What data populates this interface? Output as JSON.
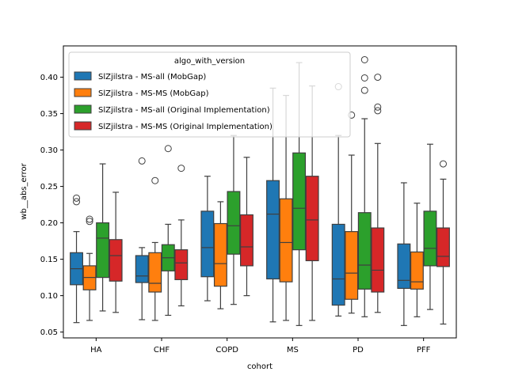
{
  "chart_data": {
    "type": "box",
    "xlabel": "cohort",
    "ylabel": "wb__abs_error",
    "categories": [
      "HA",
      "CHF",
      "COPD",
      "MS",
      "PD",
      "PFF"
    ],
    "ylim": [
      0.042,
      0.443
    ],
    "yticks": [
      0.05,
      0.1,
      0.15,
      0.2,
      0.25,
      0.3,
      0.35,
      0.4
    ],
    "ytick_labels": [
      "0.05",
      "0.10",
      "0.15",
      "0.20",
      "0.25",
      "0.30",
      "0.35",
      "0.40"
    ],
    "legend": {
      "title": "algo_with_version",
      "position": "upper-left"
    },
    "grid": false,
    "series": [
      {
        "name": "SlZjilstra - MS-all (MobGap)",
        "color": "#1f77b4",
        "boxes": [
          {
            "min": 0.063,
            "q1": 0.115,
            "median": 0.137,
            "q3": 0.159,
            "max": 0.188,
            "outliers": [
              0.229,
              0.234
            ]
          },
          {
            "min": 0.067,
            "q1": 0.118,
            "median": 0.127,
            "q3": 0.155,
            "max": 0.166,
            "outliers": [
              0.285
            ]
          },
          {
            "min": 0.093,
            "q1": 0.126,
            "median": 0.166,
            "q3": 0.216,
            "max": 0.264,
            "outliers": []
          },
          {
            "min": 0.064,
            "q1": 0.123,
            "median": 0.212,
            "q3": 0.258,
            "max": 0.385,
            "outliers": []
          },
          {
            "min": 0.072,
            "q1": 0.087,
            "median": 0.123,
            "q3": 0.198,
            "max": 0.32,
            "outliers": [
              0.387
            ]
          },
          {
            "min": 0.059,
            "q1": 0.11,
            "median": 0.121,
            "q3": 0.171,
            "max": 0.255,
            "outliers": []
          }
        ]
      },
      {
        "name": "SlZjilstra - MS-MS (MobGap)",
        "color": "#ff7f0e",
        "boxes": [
          {
            "min": 0.066,
            "q1": 0.108,
            "median": 0.125,
            "q3": 0.141,
            "max": 0.158,
            "outliers": [
              0.202,
              0.205
            ]
          },
          {
            "min": 0.066,
            "q1": 0.105,
            "median": 0.117,
            "q3": 0.159,
            "max": 0.173,
            "outliers": [
              0.258
            ]
          },
          {
            "min": 0.082,
            "q1": 0.113,
            "median": 0.144,
            "q3": 0.199,
            "max": 0.229,
            "outliers": []
          },
          {
            "min": 0.066,
            "q1": 0.119,
            "median": 0.173,
            "q3": 0.233,
            "max": 0.375,
            "outliers": []
          },
          {
            "min": 0.076,
            "q1": 0.095,
            "median": 0.131,
            "q3": 0.188,
            "max": 0.293,
            "outliers": [
              0.348
            ]
          },
          {
            "min": 0.071,
            "q1": 0.109,
            "median": 0.119,
            "q3": 0.16,
            "max": 0.227,
            "outliers": []
          }
        ]
      },
      {
        "name": "SlZjilstra - MS-all (Original Implementation)",
        "color": "#2ca02c",
        "boxes": [
          {
            "min": 0.079,
            "q1": 0.125,
            "median": 0.179,
            "q3": 0.2,
            "max": 0.281,
            "outliers": []
          },
          {
            "min": 0.073,
            "q1": 0.134,
            "median": 0.152,
            "q3": 0.17,
            "max": 0.198,
            "outliers": [
              0.302
            ]
          },
          {
            "min": 0.088,
            "q1": 0.157,
            "median": 0.196,
            "q3": 0.243,
            "max": 0.32,
            "outliers": []
          },
          {
            "min": 0.059,
            "q1": 0.163,
            "median": 0.22,
            "q3": 0.296,
            "max": 0.42,
            "outliers": []
          },
          {
            "min": 0.071,
            "q1": 0.109,
            "median": 0.142,
            "q3": 0.214,
            "max": 0.343,
            "outliers": [
              0.382,
              0.399,
              0.424
            ]
          },
          {
            "min": 0.081,
            "q1": 0.141,
            "median": 0.165,
            "q3": 0.216,
            "max": 0.308,
            "outliers": []
          }
        ]
      },
      {
        "name": "SlZjilstra - MS-MS (Original Implementation)",
        "color": "#d62728",
        "boxes": [
          {
            "min": 0.077,
            "q1": 0.12,
            "median": 0.155,
            "q3": 0.177,
            "max": 0.242,
            "outliers": []
          },
          {
            "min": 0.086,
            "q1": 0.122,
            "median": 0.145,
            "q3": 0.163,
            "max": 0.204,
            "outliers": [
              0.275
            ]
          },
          {
            "min": 0.1,
            "q1": 0.141,
            "median": 0.167,
            "q3": 0.211,
            "max": 0.29,
            "outliers": []
          },
          {
            "min": 0.066,
            "q1": 0.148,
            "median": 0.204,
            "q3": 0.264,
            "max": 0.388,
            "outliers": []
          },
          {
            "min": 0.077,
            "q1": 0.105,
            "median": 0.135,
            "q3": 0.193,
            "max": 0.309,
            "outliers": [
              0.354,
              0.359,
              0.4
            ]
          },
          {
            "min": 0.061,
            "q1": 0.14,
            "median": 0.154,
            "q3": 0.193,
            "max": 0.26,
            "outliers": [
              0.281
            ]
          }
        ]
      }
    ]
  }
}
